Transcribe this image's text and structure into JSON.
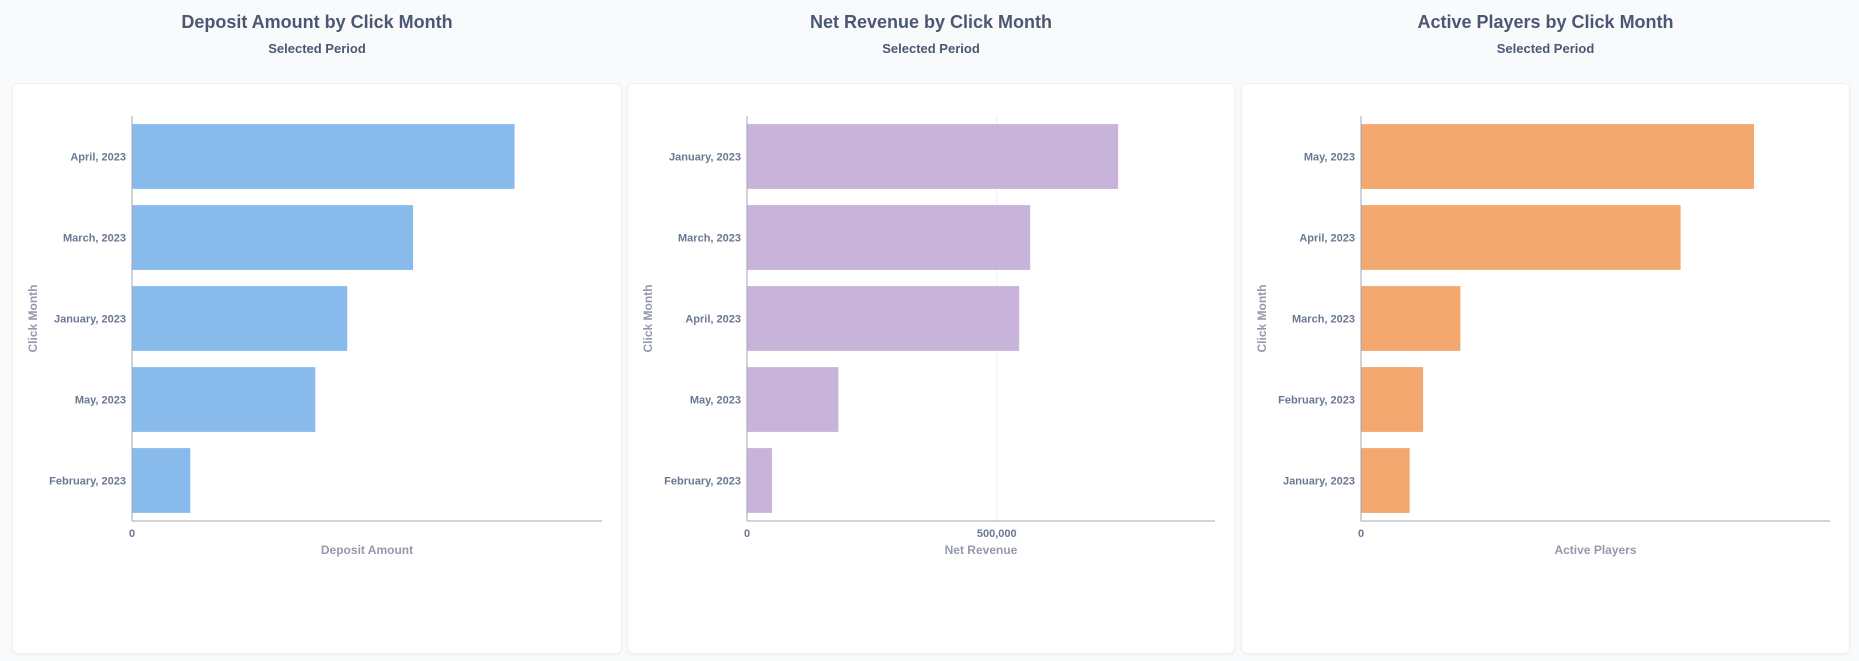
{
  "charts": [
    {
      "title": "Deposit Amount by Click Month",
      "subtitle": "Selected Period",
      "color": "#88bbec",
      "chart_data": {
        "type": "bar",
        "orientation": "horizontal",
        "categories": [
          "April, 2023",
          "March, 2023",
          "January, 2023",
          "May, 2023",
          "February, 2023"
        ],
        "values": [
          4070000,
          2990000,
          2290000,
          1950000,
          620000
        ],
        "xlim": [
          0,
          5000000
        ],
        "xticks": [
          {
            "value": 0,
            "label": "0"
          }
        ],
        "xlabel": "Deposit Amount",
        "ylabel": "Click Month",
        "grid": false
      }
    },
    {
      "title": "Net Revenue by Click Month",
      "subtitle": "Selected Period",
      "color": "#c8b3da",
      "chart_data": {
        "type": "bar",
        "orientation": "horizontal",
        "categories": [
          "January, 2023",
          "March, 2023",
          "April, 2023",
          "May, 2023",
          "February, 2023"
        ],
        "values": [
          743000,
          567000,
          545000,
          183000,
          50000
        ],
        "xlim": [
          0,
          937000
        ],
        "xticks": [
          {
            "value": 0,
            "label": "0"
          },
          {
            "value": 500000,
            "label": "500,000"
          }
        ],
        "xlabel": "Net Revenue",
        "ylabel": "Click Month",
        "grid": true
      }
    },
    {
      "title": "Active Players by Click Month",
      "subtitle": "Selected Period",
      "color": "#f2a86f",
      "chart_data": {
        "type": "bar",
        "orientation": "horizontal",
        "categories": [
          "May, 2023",
          "April, 2023",
          "March, 2023",
          "February, 2023",
          "January, 2023"
        ],
        "values": [
          905,
          736,
          229,
          143,
          112
        ],
        "xlim": [
          0,
          1080
        ],
        "xticks": [
          {
            "value": 0,
            "label": "0"
          }
        ],
        "xlabel": "Active Players",
        "ylabel": "Click Month",
        "grid": false
      }
    }
  ]
}
